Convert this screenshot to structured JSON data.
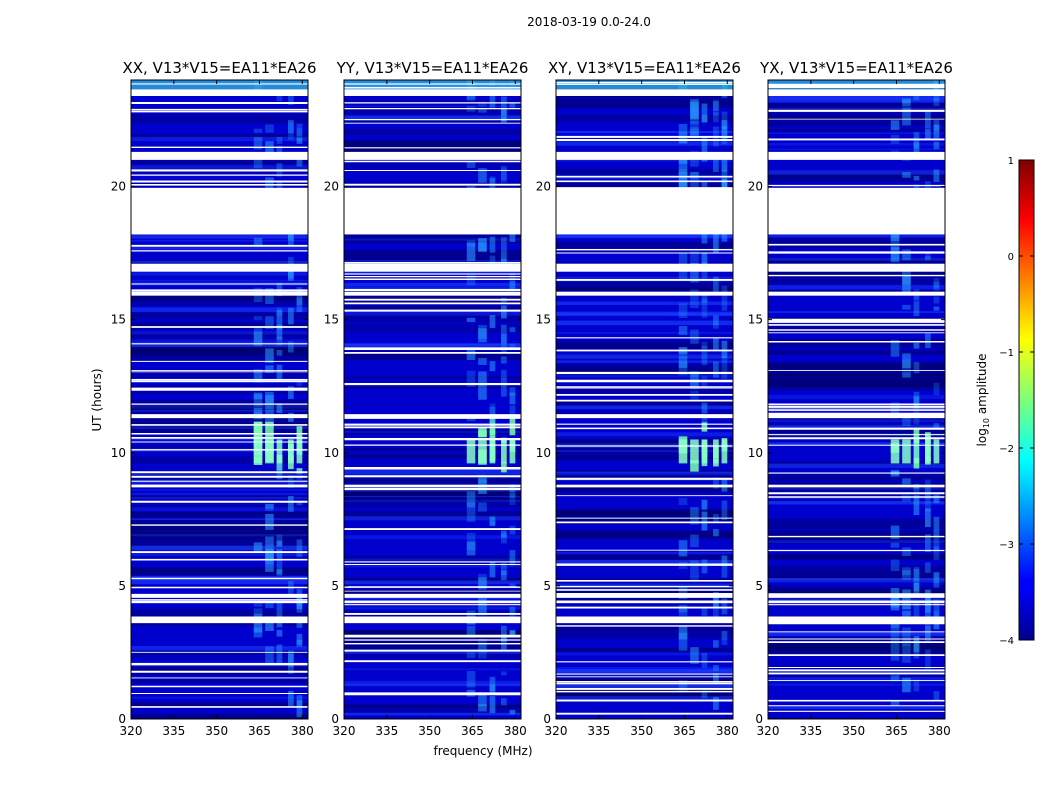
{
  "chart_data": {
    "type": "heatmap",
    "suptitle": "2018-03-19 0.0-24.0",
    "xlabel": "frequency (MHz)",
    "ylabel": "UT (hours)",
    "xlim": [
      320,
      382
    ],
    "ylim": [
      0,
      24
    ],
    "xticks": [
      "320",
      "335",
      "350",
      "365",
      "380"
    ],
    "xtick_values": [
      320,
      335,
      350,
      365,
      380
    ],
    "yticks": [
      "0",
      "5",
      "10",
      "15",
      "20"
    ],
    "ytick_values": [
      0,
      5,
      10,
      15,
      20
    ],
    "panels": [
      {
        "title": "XX, V13*V15=EA11*EA26",
        "polarization": "XX"
      },
      {
        "title": "YY, V13*V15=EA11*EA26",
        "polarization": "YY"
      },
      {
        "title": "XY, V13*V15=EA11*EA26",
        "polarization": "XY"
      },
      {
        "title": "YX, V13*V15=EA11*EA26",
        "polarization": "YX"
      }
    ],
    "colorbar": {
      "label": "log10 amplitude",
      "label_main": "log",
      "label_sub": "10",
      "label_rest": " amplitude",
      "range": [
        -4,
        1
      ],
      "ticks": [
        "1",
        "0",
        "−1",
        "−2",
        "−3",
        "−4"
      ],
      "tick_values": [
        1,
        0,
        -1,
        -2,
        -3,
        -4
      ],
      "colormap": "jet"
    },
    "flagged_hours": [
      [
        18.2,
        19.95
      ],
      [
        21.0,
        21.3
      ],
      [
        23.4,
        23.65
      ],
      [
        3.6,
        3.85
      ],
      [
        4.35,
        4.45
      ],
      [
        4.55,
        4.7
      ],
      [
        11.3,
        11.45
      ],
      [
        15.9,
        16.05
      ],
      [
        16.8,
        17.1
      ],
      [
        8.7,
        8.8
      ]
    ],
    "rfi_bands_mhz": [
      [
        363,
        366
      ],
      [
        367,
        370
      ],
      [
        371,
        373
      ],
      [
        375,
        377
      ],
      [
        378,
        380
      ]
    ],
    "colors": {
      "background": "#00008f",
      "flagged": "#ffffff",
      "frame": "#000000"
    }
  }
}
